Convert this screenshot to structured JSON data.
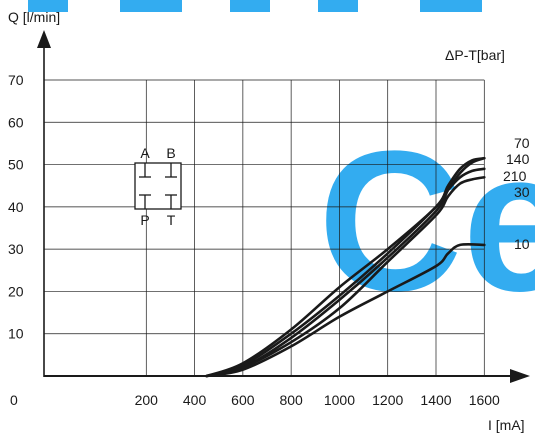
{
  "chart_data": {
    "type": "line",
    "ylabel": "Q [l/min]",
    "xlabel": "I [mA]",
    "legend_title": "ΔP-T[bar]",
    "legend_placement": "right",
    "grid": true,
    "xlim": [
      0,
      1650
    ],
    "ylim": [
      0,
      70
    ],
    "xticks": [
      0,
      200,
      400,
      600,
      800,
      1000,
      1200,
      1400,
      1600
    ],
    "yticks": [
      10,
      20,
      30,
      40,
      50,
      60,
      70
    ],
    "colors": {
      "curve": "#1a1a1a",
      "grid": "#1a1a1a",
      "watermark": "#29a8f0"
    },
    "symbol": {
      "top_left": "A",
      "top_right": "B",
      "bottom_left": "P",
      "bottom_right": "T"
    },
    "watermark": "Ce",
    "series": [
      {
        "name": "70",
        "x": [
          450,
          600,
          800,
          1000,
          1200,
          1400,
          1450,
          1500,
          1550,
          1600
        ],
        "y": [
          0,
          2,
          9,
          18,
          28,
          39,
          44,
          48,
          50.5,
          51.5
        ]
      },
      {
        "name": "140",
        "x": [
          450,
          600,
          800,
          1000,
          1200,
          1400,
          1450,
          1500,
          1550,
          1600
        ],
        "y": [
          0,
          3,
          11,
          21,
          30,
          40,
          45,
          49,
          51,
          51.5
        ]
      },
      {
        "name": "210",
        "x": [
          450,
          600,
          800,
          1000,
          1200,
          1400,
          1450,
          1500,
          1550,
          1600
        ],
        "y": [
          0,
          2.5,
          10,
          19,
          29,
          40,
          44,
          47,
          48.5,
          49
        ]
      },
      {
        "name": "30",
        "x": [
          450,
          600,
          800,
          1000,
          1200,
          1400,
          1450,
          1500,
          1550,
          1600
        ],
        "y": [
          0,
          2,
          8,
          16,
          27,
          38,
          42.5,
          45.5,
          46.5,
          47
        ]
      },
      {
        "name": "10",
        "x": [
          450,
          600,
          800,
          1000,
          1200,
          1400,
          1450,
          1500,
          1600
        ],
        "y": [
          0,
          1.5,
          7,
          14,
          20,
          26,
          29,
          31,
          31
        ]
      }
    ]
  }
}
